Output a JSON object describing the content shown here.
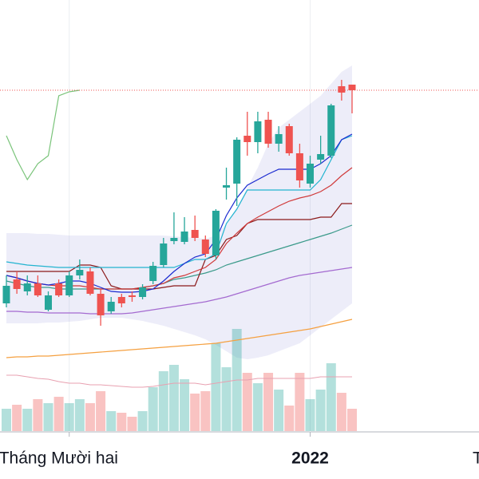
{
  "chart_data": {
    "type": "candlestick",
    "categories": [
      null,
      null,
      null,
      null,
      null,
      null,
      "Tháng Mười hai",
      null,
      null,
      null,
      null,
      null,
      null,
      null,
      null,
      null,
      null,
      null,
      null,
      null,
      null,
      null,
      null,
      null,
      null,
      null,
      null,
      null,
      null,
      "2022",
      null,
      null,
      null,
      null
    ],
    "x_extra_label": "T",
    "ylim": [
      0,
      600
    ],
    "up_color": "#26a69a",
    "down_color": "#ef5350",
    "price_line": 487,
    "open": [
      220,
      250,
      235,
      245,
      212,
      245,
      230,
      255,
      260,
      232,
      210,
      228,
      230,
      228,
      248,
      268,
      298,
      297,
      312,
      300,
      280,
      365,
      370,
      430,
      422,
      450,
      420,
      442,
      408,
      370,
      400,
      405,
      492,
      494
    ],
    "high": [
      255,
      260,
      255,
      255,
      235,
      250,
      260,
      275,
      265,
      238,
      228,
      232,
      235,
      244,
      272,
      302,
      334,
      328,
      330,
      305,
      338,
      390,
      428,
      460,
      460,
      460,
      442,
      445,
      420,
      405,
      430,
      470,
      500,
      494
    ],
    "low": [
      215,
      232,
      230,
      228,
      210,
      228,
      228,
      250,
      230,
      192,
      207,
      215,
      222,
      225,
      244,
      265,
      294,
      294,
      298,
      278,
      275,
      350,
      342,
      405,
      408,
      415,
      410,
      405,
      365,
      365,
      395,
      402,
      474,
      458
    ],
    "close": [
      242,
      238,
      245,
      230,
      230,
      230,
      255,
      262,
      232,
      205,
      222,
      220,
      228,
      240,
      267,
      295,
      302,
      310,
      302,
      282,
      336,
      368,
      425,
      422,
      448,
      420,
      432,
      408,
      374,
      395,
      407,
      468,
      484,
      487
    ],
    "volume": {
      "ylim": [
        0,
        300
      ],
      "values": [
        28,
        33,
        28,
        40,
        35,
        43,
        35,
        40,
        35,
        50,
        25,
        23,
        18,
        25,
        55,
        75,
        83,
        65,
        47,
        50,
        110,
        80,
        128,
        73,
        60,
        73,
        52,
        32,
        73,
        40,
        52,
        85,
        48,
        28
      ],
      "ma": {
        "color": "#e8a0b0",
        "values": [
          70,
          70,
          68,
          66,
          65,
          62,
          60,
          60,
          58,
          58,
          57,
          56,
          55,
          55,
          56,
          58,
          60,
          60,
          60,
          58,
          60,
          62,
          64,
          64,
          66,
          66,
          66,
          66,
          66,
          66,
          68,
          68,
          68,
          68
        ]
      }
    },
    "band": {
      "color": "#6a6ad0",
      "upper": [
        308,
        308,
        308,
        307,
        307,
        306,
        305,
        305,
        305,
        305,
        305,
        305,
        305,
        305,
        305,
        305,
        304,
        303,
        302,
        301,
        305,
        320,
        340,
        365,
        390,
        420,
        440,
        450,
        460,
        470,
        480,
        495,
        510,
        518
      ],
      "lower": [
        195,
        195,
        195,
        195,
        196,
        196,
        197,
        198,
        200,
        202,
        202,
        202,
        200,
        198,
        195,
        192,
        188,
        184,
        180,
        175,
        168,
        160,
        152,
        150,
        152,
        155,
        160,
        165,
        170,
        180,
        190,
        200,
        210,
        220
      ]
    },
    "series": [
      {
        "color": "#f5a040",
        "values": [
          152,
          153,
          153,
          154,
          154,
          155,
          156,
          157,
          158,
          159,
          160,
          161,
          162,
          163,
          164,
          165,
          166,
          167,
          168,
          169,
          170,
          172,
          174,
          176,
          178,
          180,
          182,
          184,
          186,
          188,
          191,
          194,
          197,
          200
        ]
      },
      {
        "color": "#a46ad0",
        "values": [
          210,
          210,
          209,
          209,
          208,
          208,
          208,
          208,
          207,
          207,
          207,
          207,
          208,
          210,
          212,
          214,
          216,
          218,
          220,
          222,
          225,
          228,
          232,
          236,
          240,
          244,
          248,
          252,
          255,
          257,
          259,
          261,
          263,
          265
        ]
      },
      {
        "color": "#3a9a8a",
        "values": [
          248,
          245,
          242,
          240,
          240,
          238,
          238,
          238,
          238,
          238,
          238,
          238,
          238,
          240,
          242,
          245,
          250,
          252,
          255,
          258,
          262,
          268,
          272,
          276,
          280,
          284,
          288,
          292,
          296,
          300,
          304,
          308,
          313,
          318
        ]
      },
      {
        "color": "#8b1a1a",
        "values": [
          260,
          260,
          260,
          260,
          260,
          260,
          260,
          268,
          268,
          265,
          242,
          238,
          238,
          238,
          238,
          240,
          242,
          242,
          242,
          275,
          280,
          300,
          305,
          320,
          325,
          325,
          325,
          325,
          325,
          325,
          328,
          328,
          345,
          345
        ]
      },
      {
        "color": "#d03a3a",
        "values": [
          255,
          252,
          248,
          245,
          243,
          242,
          242,
          242,
          240,
          238,
          238,
          238,
          238,
          240,
          242,
          245,
          252,
          255,
          260,
          265,
          275,
          295,
          308,
          320,
          328,
          335,
          342,
          348,
          352,
          355,
          360,
          368,
          380,
          390
        ]
      },
      {
        "color": "#22b4d0",
        "values": [
          272,
          270,
          268,
          267,
          266,
          265,
          265,
          265,
          265,
          265,
          265,
          265,
          265,
          265,
          265,
          265,
          265,
          270,
          275,
          275,
          282,
          320,
          338,
          362,
          362,
          362,
          362,
          362,
          362,
          362,
          375,
          400,
          425,
          430
        ]
      },
      {
        "color": "#1a2ad0",
        "values": [
          255,
          252,
          248,
          245,
          243,
          245,
          248,
          248,
          245,
          240,
          235,
          234,
          234,
          235,
          238,
          248,
          260,
          270,
          278,
          282,
          300,
          330,
          352,
          368,
          375,
          382,
          388,
          388,
          388,
          388,
          395,
          405,
          425,
          432
        ]
      },
      {
        "color": "#7ac47a",
        "values": [
          430,
          400,
          375,
          395,
          405,
          480,
          485,
          487,
          null,
          null,
          null,
          null,
          null,
          null,
          null,
          null,
          null,
          null,
          null,
          null,
          null,
          null,
          null,
          null,
          null,
          null,
          null,
          null,
          null,
          null,
          null,
          null,
          null,
          null
        ]
      }
    ]
  }
}
